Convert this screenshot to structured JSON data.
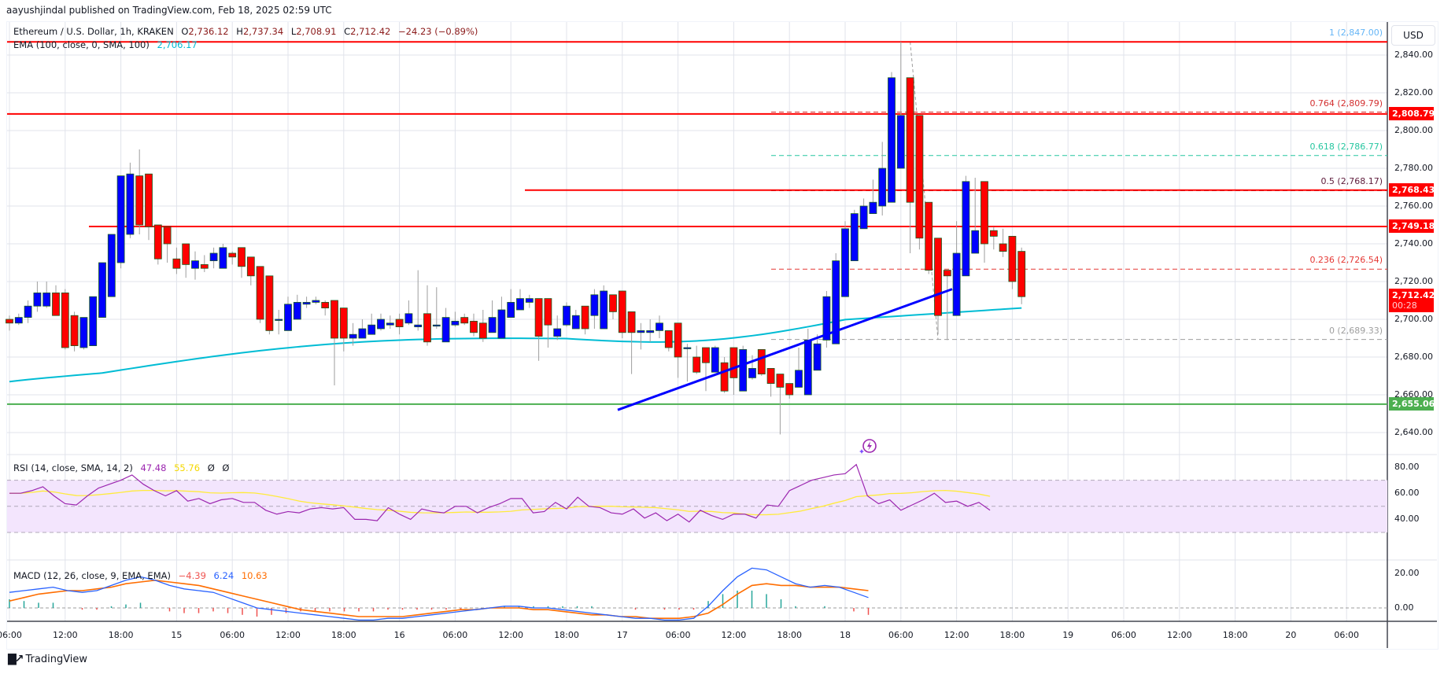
{
  "header": {
    "publisher_line": "aayushjindal published on TradingView.com, Feb 18, 2025 02:59 UTC"
  },
  "legend": {
    "symbol": "Ethereum / U.S. Dollar, 1h, KRAKEN",
    "open_label": "O",
    "open": "2,736.12",
    "high_label": "H",
    "high": "2,737.34",
    "low_label": "L",
    "low": "2,708.91",
    "close_label": "C",
    "close": "2,712.42",
    "change": "−24.23 (−0.89%)",
    "ema_label": "EMA (100, close, 0, SMA, 100)",
    "ema_value": "2,706.17"
  },
  "rsi_legend": {
    "label": "RSI (14, close, SMA, 14, 2)",
    "rsi": "47.48",
    "sma": "55.76",
    "extra1": "Ø",
    "extra2": "Ø"
  },
  "macd_legend": {
    "label": "MACD (12, 26, close, 9, EMA, EMA)",
    "hist": "−4.39",
    "macd": "6.24",
    "signal": "10.63"
  },
  "currency_button": "USD",
  "colors": {
    "bull": "#0000ff",
    "bear": "#ff0000",
    "ema": "#00bcd4",
    "resistance": "#ff0000",
    "support": "#4caf50",
    "trendline": "#0000ff",
    "rsi": "#9c27b0",
    "rsi_sma": "#ffeb3b",
    "macd": "#2962ff",
    "signal": "#ff6d00",
    "hist_up": "#26a69a",
    "hist_down": "#ef5350"
  },
  "price_axis": {
    "ticks": [
      "2,840.00",
      "2,820.00",
      "2,800.00",
      "2,780.00",
      "2,760.00",
      "2,740.00",
      "2,720.00",
      "2,700.00",
      "2,680.00",
      "2,660.00",
      "2,640.00"
    ]
  },
  "price_tags": [
    {
      "value": "2,808.79",
      "color": "#ff0000"
    },
    {
      "value": "2,768.43",
      "color": "#ff0000"
    },
    {
      "value": "2,749.18",
      "color": "#ff0000"
    },
    {
      "value": "2,712.42",
      "countdown": "00:28",
      "color": "#ff0000"
    },
    {
      "value": "2,655.06",
      "color": "#4caf50"
    }
  ],
  "fib_levels": [
    {
      "label": "1 (2,847.00)",
      "price": 2847.0,
      "color": "#64b5f6"
    },
    {
      "label": "0.764 (2,809.79)",
      "price": 2809.79,
      "color": "#d32f2f"
    },
    {
      "label": "0.618 (2,786.77)",
      "price": 2786.77,
      "color": "#26c6a0"
    },
    {
      "label": "0.5 (2,768.17)",
      "price": 2768.17,
      "color": "#5d1a3a"
    },
    {
      "label": "0.236 (2,726.54)",
      "price": 2726.54,
      "color": "#e53935"
    },
    {
      "label": "0 (2,689.33)",
      "price": 2689.33,
      "color": "#9e9e9e"
    }
  ],
  "rsi_axis": {
    "ticks": [
      "80.00",
      "60.00",
      "40.00"
    ]
  },
  "macd_axis": {
    "ticks": [
      "20.00",
      "0.00"
    ]
  },
  "time_axis": {
    "labels": [
      "06:00",
      "12:00",
      "18:00",
      "15",
      "06:00",
      "12:00",
      "18:00",
      "16",
      "06:00",
      "12:00",
      "18:00",
      "17",
      "06:00",
      "12:00",
      "18:00",
      "18",
      "06:00",
      "12:00",
      "18:00",
      "19",
      "06:00",
      "12:00",
      "18:00",
      "20",
      "06:00"
    ]
  },
  "brand": {
    "name": "TradingView"
  },
  "chart_data": {
    "type": "candlestick",
    "title": "Ethereum / U.S. Dollar, 1h, KRAKEN",
    "xlabel": "",
    "ylabel": "USD",
    "ylim": [
      2630,
      2850
    ],
    "x_range": "Feb 14 06:00 - Feb 20 06:00 UTC (1h candles)",
    "ohlc": {
      "open": [
        2700,
        2698,
        2701,
        2707,
        2707,
        2714,
        2714,
        2702,
        2685,
        2686,
        2701,
        2712,
        2730,
        2745,
        2776,
        2777,
        2750,
        2749,
        2732,
        2740,
        2727,
        2729,
        2731,
        2727,
        2735,
        2738,
        2733,
        2728,
        2723,
        2700,
        2694,
        2700,
        2708,
        2709,
        2709,
        2710,
        2706,
        2690,
        2690,
        2692,
        2695,
        2697,
        2700,
        2698,
        2696,
        2703,
        2697,
        2688,
        2697,
        2701,
        2699,
        2698,
        2693,
        2690,
        2701,
        2705,
        2709,
        2711,
        2711,
        2691,
        2697,
        2695,
        2707,
        2702,
        2695,
        2713,
        2715,
        2704,
        2693,
        2693,
        2694,
        2694,
        2698,
        2685,
        2680,
        2685,
        2672,
        2677,
        2685,
        2662,
        2669,
        2684,
        2674,
        2671,
        2666,
        2664,
        2660,
        2673,
        2689,
        2687,
        2712,
        2731,
        2748,
        2756,
        2760,
        2762,
        2780,
        2828,
        2808,
        2762,
        2743,
        2726,
        2702,
        2723,
        2735,
        2773,
        2747,
        2740,
        2744,
        2736
      ],
      "close": [
        2698,
        2701,
        2707,
        2714,
        2714,
        2702,
        2685,
        2686,
        2701,
        2712,
        2730,
        2745,
        2776,
        2777,
        2750,
        2749,
        2732,
        2740,
        2727,
        2729,
        2731,
        2727,
        2735,
        2738,
        2733,
        2728,
        2723,
        2700,
        2694,
        2700,
        2708,
        2709,
        2709,
        2710,
        2706,
        2690,
        2690,
        2692,
        2695,
        2697,
        2700,
        2698,
        2696,
        2703,
        2697,
        2688,
        2697,
        2701,
        2699,
        2698,
        2693,
        2690,
        2701,
        2705,
        2709,
        2711,
        2711,
        2691,
        2697,
        2695,
        2707,
        2702,
        2695,
        2713,
        2715,
        2704,
        2693,
        2693,
        2694,
        2694,
        2698,
        2685,
        2680,
        2685,
        2672,
        2677,
        2685,
        2662,
        2669,
        2684,
        2674,
        2671,
        2666,
        2664,
        2660,
        2673,
        2689,
        2687,
        2712,
        2731,
        2748,
        2756,
        2760,
        2762,
        2780,
        2828,
        2808,
        2762,
        2743,
        2726,
        2702,
        2723,
        2735,
        2773,
        2747,
        2740,
        2744,
        2736,
        2720,
        2712
      ],
      "high": [
        2702,
        2703,
        2710,
        2720,
        2720,
        2718,
        2716,
        2704,
        2690,
        2703,
        2718,
        2735,
        2750,
        2783,
        2790,
        2769,
        2750,
        2745,
        2738,
        2738,
        2736,
        2734,
        2738,
        2740,
        2736,
        2730,
        2727,
        2715,
        2702,
        2705,
        2712,
        2713,
        2712,
        2712,
        2710,
        2706,
        2693,
        2698,
        2700,
        2703,
        2703,
        2702,
        2703,
        2710,
        2726,
        2718,
        2717,
        2706,
        2704,
        2703,
        2703,
        2705,
        2710,
        2712,
        2716,
        2716,
        2713,
        2708,
        2703,
        2702,
        2709,
        2705,
        2703,
        2716,
        2718,
        2708,
        2700,
        2697,
        2698,
        2700,
        2702,
        2688,
        2686,
        2687,
        2686,
        2683,
        2686,
        2680,
        2679,
        2686,
        2681,
        2676,
        2673,
        2671,
        2665,
        2685,
        2695,
        2692,
        2715,
        2735,
        2752,
        2758,
        2764,
        2774,
        2794,
        2831,
        2847,
        2818,
        2755,
        2742,
        2733,
        2725,
        2752,
        2776,
        2775,
        2758,
        2749,
        2748,
        2740,
        2738
      ],
      "low": [
        2694,
        2697,
        2698,
        2704,
        2706,
        2702,
        2684,
        2683,
        2684,
        2686,
        2701,
        2712,
        2727,
        2743,
        2745,
        2742,
        2729,
        2730,
        2724,
        2722,
        2721,
        2725,
        2727,
        2728,
        2729,
        2722,
        2718,
        2698,
        2692,
        2692,
        2703,
        2704,
        2706,
        2708,
        2702,
        2665,
        2683,
        2686,
        2690,
        2693,
        2694,
        2695,
        2692,
        2697,
        2694,
        2686,
        2695,
        2698,
        2696,
        2697,
        2691,
        2688,
        2696,
        2701,
        2706,
        2706,
        2706,
        2678,
        2685,
        2689,
        2696,
        2698,
        2692,
        2695,
        2710,
        2700,
        2690,
        2671,
        2684,
        2688,
        2690,
        2683,
        2669,
        2667,
        2671,
        2662,
        2672,
        2661,
        2660,
        2664,
        2668,
        2670,
        2659,
        2639,
        2658,
        2670,
        2685,
        2683,
        2685,
        2708,
        2727,
        2746,
        2754,
        2757,
        2755,
        2770,
        2801,
        2735,
        2737,
        2724,
        2692,
        2689,
        2722,
        2725,
        2745,
        2730,
        2737,
        2733,
        2716,
        2708
      ]
    },
    "overlays": {
      "ema100": "rises from ~2667 to ~2706 by the last candle",
      "resistance_lines": [
        2808.79,
        2768.43,
        2749.18,
        2847.0
      ],
      "support_line": 2655.06,
      "trendline": {
        "from": [
          78,
          2652
        ],
        "to": [
          121,
          2715
        ]
      },
      "fibonacci": {
        "high": 2847.0,
        "low": 2689.33
      }
    },
    "rsi": {
      "ylim": [
        20,
        90
      ],
      "bands": [
        30,
        50,
        70
      ],
      "last": 47.48,
      "sma_last": 55.76
    },
    "macd": {
      "last_macd": 6.24,
      "last_signal": 10.63,
      "last_hist": -4.39
    }
  }
}
